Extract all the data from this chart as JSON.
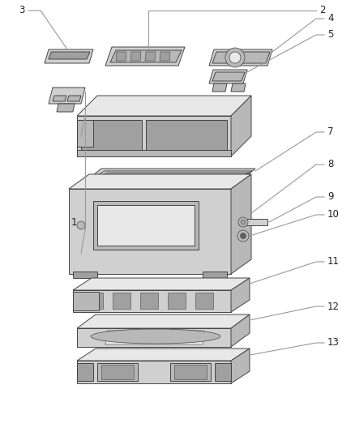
{
  "bg_color": "#ffffff",
  "line_color": "#999999",
  "ec": "#444444",
  "lw": 0.7,
  "face_light": "#e8e8e8",
  "face_mid": "#d0d0d0",
  "face_dark": "#b8b8b8",
  "face_darker": "#a0a0a0"
}
